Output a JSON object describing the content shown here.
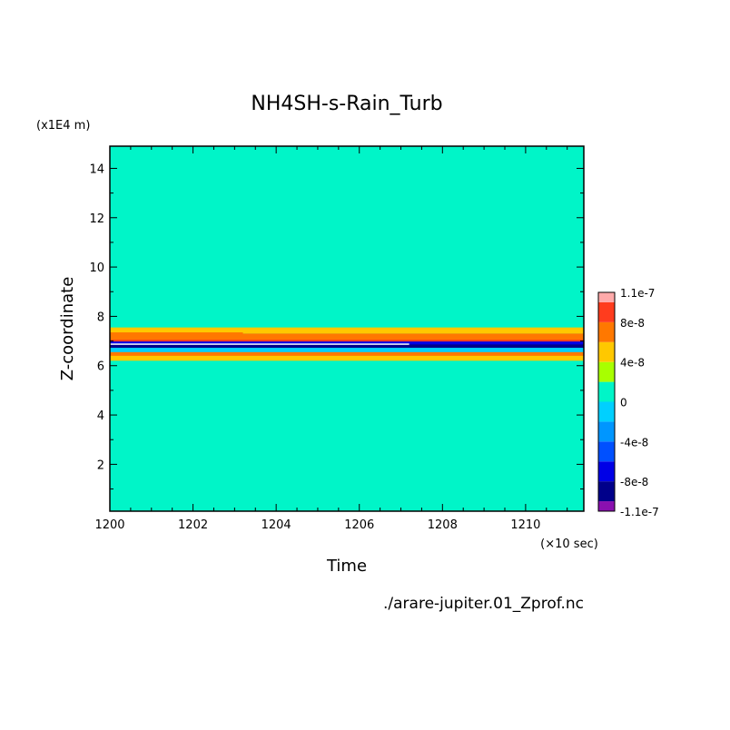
{
  "chart_data": {
    "type": "heatmap",
    "title": "NH4SH-s-Rain_Turb",
    "xlabel": "Time",
    "ylabel": "Z-coordinate",
    "x_unit": "(×10 sec)",
    "y_unit": "(x1E4 m)",
    "source_file": "./arare-jupiter.01_Zprof.nc",
    "xlim": [
      1200,
      1211.4
    ],
    "ylim": [
      0.1,
      14.9
    ],
    "x_ticks": [
      "1200",
      "1202",
      "1204",
      "1206",
      "1208",
      "1210"
    ],
    "y_ticks": [
      "2",
      "4",
      "6",
      "8",
      "10",
      "12",
      "14"
    ],
    "background_value_class": "0",
    "colorbar": {
      "levels": [
        -1.1e-07,
        -1e-07,
        -8e-08,
        -6e-08,
        -4e-08,
        -2e-08,
        0,
        2e-08,
        4e-08,
        6e-08,
        8e-08,
        1e-07,
        1.1e-07
      ],
      "colors": [
        "#8a10b0",
        "#00008a",
        "#0000e6",
        "#0050ff",
        "#0096ff",
        "#00d0ff",
        "#00f5c8",
        "#a8ff00",
        "#ffc800",
        "#ff7800",
        "#ff3c1e",
        "#ffaaaa"
      ],
      "tick_labels": [
        "1.1e-7",
        "8e-8",
        "4e-8",
        "0",
        "-4e-8",
        "-8e-8",
        "-1.1e-7"
      ]
    },
    "bands": [
      {
        "z_low": 12.45,
        "z_high": 12.55,
        "x_start": 1200,
        "x_end": 1211.4,
        "color": "#00f5c8"
      },
      {
        "z_low": 11.0,
        "z_high": 11.4,
        "x_start": 1200,
        "x_end": 1211.4,
        "color": "#00f5c8"
      },
      {
        "z_low": 10.7,
        "z_high": 10.85,
        "x_start": 1202.5,
        "x_end": 1211.4,
        "color": "#00f5c8"
      },
      {
        "z_low": 10.2,
        "z_high": 10.5,
        "x_start": 1200,
        "x_end": 1211.4,
        "color": "#00f5c8"
      },
      {
        "z_low": 9.75,
        "z_high": 9.95,
        "x_start": 1200,
        "x_end": 1211.4,
        "color": "#00f5c8"
      },
      {
        "z_low": 9.2,
        "z_high": 9.35,
        "x_start": 1200,
        "x_end": 1211.4,
        "color": "#00f5c8"
      },
      {
        "z_low": 8.55,
        "z_high": 8.85,
        "x_start": 1200,
        "x_end": 1211.4,
        "color": "#00f5c8"
      },
      {
        "z_low": 7.3,
        "z_high": 7.55,
        "x_start": 1200,
        "x_end": 1211.4,
        "color": "#ffc800"
      },
      {
        "z_low": 7.2,
        "z_high": 7.35,
        "x_start": 1200,
        "x_end": 1203.2,
        "color": "#ff7800"
      },
      {
        "z_low": 7.0,
        "z_high": 7.3,
        "x_start": 1200,
        "x_end": 1211.4,
        "color": "#ff7800"
      },
      {
        "z_low": 6.95,
        "z_high": 7.05,
        "x_start": 1200,
        "x_end": 1211.4,
        "color": "#ff3c1e"
      },
      {
        "z_low": 6.85,
        "z_high": 6.98,
        "x_start": 1200,
        "x_end": 1211.4,
        "color": "#0000e6"
      },
      {
        "z_low": 6.72,
        "z_high": 6.86,
        "x_start": 1200,
        "x_end": 1211.4,
        "color": "#00008a"
      },
      {
        "z_low": 6.5,
        "z_high": 6.72,
        "x_start": 1200,
        "x_end": 1211.4,
        "color": "#00d0ff"
      },
      {
        "z_low": 6.2,
        "z_high": 6.5,
        "x_start": 1200,
        "x_end": 1211.4,
        "color": "#ffc800"
      },
      {
        "z_low": 6.4,
        "z_high": 6.55,
        "x_start": 1200,
        "x_end": 1211.4,
        "color": "#ff7800"
      },
      {
        "z_low": 5.8,
        "z_high": 6.15,
        "x_start": 1200,
        "x_end": 1211.4,
        "color": "#00f5c8"
      }
    ]
  }
}
